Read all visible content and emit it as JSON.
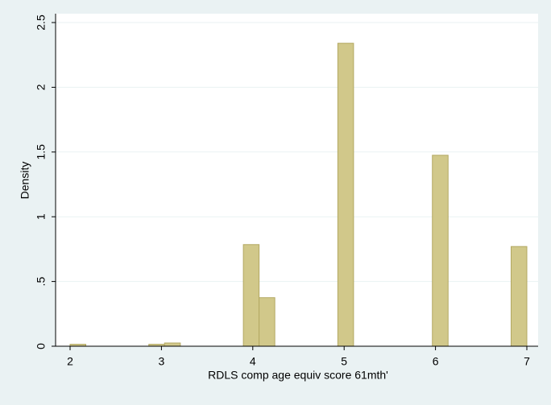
{
  "chart_data": {
    "type": "histogram",
    "x_label": "RDLS comp age equiv score 61mth'",
    "y_label": "Density",
    "bins": [
      2,
      2.172,
      2.345,
      2.517,
      2.69,
      2.862,
      3.034,
      3.207,
      3.379,
      3.552,
      3.724,
      3.897,
      4.069,
      4.241,
      4.414,
      4.586,
      4.759,
      4.931,
      5.103,
      5.276,
      5.448,
      5.621,
      5.793,
      5.966,
      6.138,
      6.31,
      6.483,
      6.655,
      6.828,
      7
    ],
    "values": [
      0.015,
      0,
      0,
      0,
      0,
      0.015,
      0.025,
      0,
      0,
      0,
      0,
      0.785,
      0.375,
      0,
      0,
      0,
      0,
      2.34,
      0,
      0,
      0,
      0,
      0,
      1.475,
      0,
      0,
      0,
      0,
      0.77
    ],
    "color": "#d1c88a",
    "xlim": [
      2,
      7
    ],
    "xticks": [
      2,
      3,
      4,
      5,
      6,
      7
    ],
    "ylim": [
      0,
      2.5
    ],
    "yticks": [
      0,
      {
        "value": 0.5,
        "label": ".5"
      },
      1,
      1.5,
      2,
      2.5
    ],
    "grid": true
  }
}
